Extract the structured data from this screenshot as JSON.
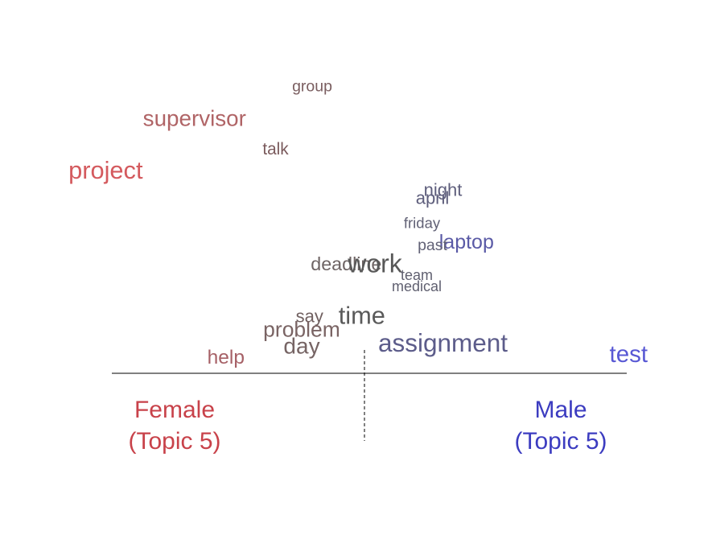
{
  "chart_data": {
    "type": "scatter",
    "title": "",
    "xlabel": "",
    "ylabel": "",
    "groups": {
      "left": {
        "line1": "Female",
        "line2": "(Topic 5)",
        "color": "#c8424a"
      },
      "right": {
        "line1": "Male",
        "line2": "(Topic 5)",
        "color": "#3c3cc0"
      }
    },
    "words": [
      {
        "text": "group",
        "x": -0.2,
        "y": 0.9,
        "weight": 0.3,
        "color": "#7a5e60"
      },
      {
        "text": "supervisor",
        "x": -0.65,
        "y": 0.78,
        "weight": 0.63,
        "color": "#b06466"
      },
      {
        "text": "talk",
        "x": -0.34,
        "y": 0.67,
        "weight": 0.35,
        "color": "#7a5a5c"
      },
      {
        "text": "project",
        "x": -0.99,
        "y": 0.59,
        "weight": 0.75,
        "color": "#d45a5e"
      },
      {
        "text": "night",
        "x": 0.3,
        "y": 0.52,
        "weight": 0.4,
        "color": "#5e5e7c"
      },
      {
        "text": "april",
        "x": 0.26,
        "y": 0.49,
        "weight": 0.4,
        "color": "#5e5e7c"
      },
      {
        "text": "friday",
        "x": 0.22,
        "y": 0.4,
        "weight": 0.26,
        "color": "#626276"
      },
      {
        "text": "laptop",
        "x": 0.39,
        "y": 0.33,
        "weight": 0.52,
        "color": "#5a5aa6"
      },
      {
        "text": "past",
        "x": 0.26,
        "y": 0.32,
        "weight": 0.3,
        "color": "#626276"
      },
      {
        "text": "deadline",
        "x": -0.07,
        "y": 0.25,
        "weight": 0.45,
        "color": "#6e6464"
      },
      {
        "text": "work",
        "x": 0.04,
        "y": 0.25,
        "weight": 0.8,
        "color": "#585858"
      },
      {
        "text": "team",
        "x": 0.2,
        "y": 0.21,
        "weight": 0.24,
        "color": "#606070"
      },
      {
        "text": "medical",
        "x": 0.2,
        "y": 0.17,
        "weight": 0.24,
        "color": "#606070"
      },
      {
        "text": "say",
        "x": -0.21,
        "y": 0.06,
        "weight": 0.4,
        "color": "#706060"
      },
      {
        "text": "time",
        "x": -0.01,
        "y": 0.06,
        "weight": 0.75,
        "color": "#5a5a5a"
      },
      {
        "text": "problem",
        "x": -0.24,
        "y": 0.01,
        "weight": 0.58,
        "color": "#7a6464"
      },
      {
        "text": "day",
        "x": -0.24,
        "y": -0.05,
        "weight": 0.64,
        "color": "#766464"
      },
      {
        "text": "assignment",
        "x": 0.3,
        "y": -0.04,
        "weight": 0.78,
        "color": "#5c5c8a"
      },
      {
        "text": "help",
        "x": -0.53,
        "y": -0.09,
        "weight": 0.5,
        "color": "#a66066"
      },
      {
        "text": "test",
        "x": 1.01,
        "y": -0.08,
        "weight": 0.7,
        "color": "#5858d4"
      }
    ]
  }
}
